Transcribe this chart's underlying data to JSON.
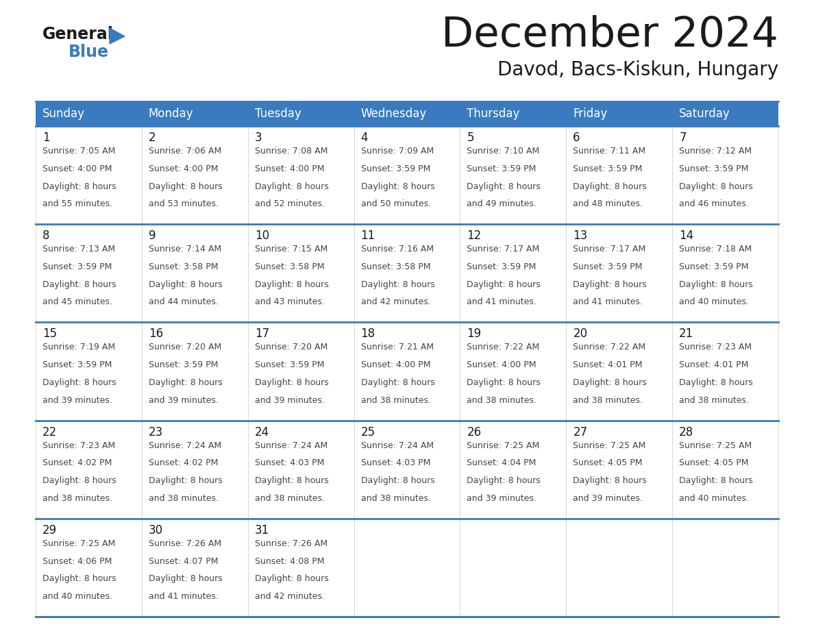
{
  "title": "December 2024",
  "subtitle": "Davod, Bacs-Kiskun, Hungary",
  "days_of_week": [
    "Sunday",
    "Monday",
    "Tuesday",
    "Wednesday",
    "Thursday",
    "Friday",
    "Saturday"
  ],
  "header_bg": "#3a7bbf",
  "header_text": "#ffffff",
  "cell_bg": "#ffffff",
  "border_color": "#3a7bbf",
  "title_color": "#1a1a1a",
  "subtitle_color": "#1a1a1a",
  "day_num_color": "#1a1a1a",
  "cell_text_color": "#444444",
  "logo_black": "#1a1a1a",
  "logo_blue": "#3a7bbf",
  "calendar_data": [
    [
      {
        "day": 1,
        "sunrise": "7:05 AM",
        "sunset": "4:00 PM",
        "daylight": "8 hours and 55 minutes"
      },
      {
        "day": 2,
        "sunrise": "7:06 AM",
        "sunset": "4:00 PM",
        "daylight": "8 hours and 53 minutes"
      },
      {
        "day": 3,
        "sunrise": "7:08 AM",
        "sunset": "4:00 PM",
        "daylight": "8 hours and 52 minutes"
      },
      {
        "day": 4,
        "sunrise": "7:09 AM",
        "sunset": "3:59 PM",
        "daylight": "8 hours and 50 minutes"
      },
      {
        "day": 5,
        "sunrise": "7:10 AM",
        "sunset": "3:59 PM",
        "daylight": "8 hours and 49 minutes"
      },
      {
        "day": 6,
        "sunrise": "7:11 AM",
        "sunset": "3:59 PM",
        "daylight": "8 hours and 48 minutes"
      },
      {
        "day": 7,
        "sunrise": "7:12 AM",
        "sunset": "3:59 PM",
        "daylight": "8 hours and 46 minutes"
      }
    ],
    [
      {
        "day": 8,
        "sunrise": "7:13 AM",
        "sunset": "3:59 PM",
        "daylight": "8 hours and 45 minutes"
      },
      {
        "day": 9,
        "sunrise": "7:14 AM",
        "sunset": "3:58 PM",
        "daylight": "8 hours and 44 minutes"
      },
      {
        "day": 10,
        "sunrise": "7:15 AM",
        "sunset": "3:58 PM",
        "daylight": "8 hours and 43 minutes"
      },
      {
        "day": 11,
        "sunrise": "7:16 AM",
        "sunset": "3:58 PM",
        "daylight": "8 hours and 42 minutes"
      },
      {
        "day": 12,
        "sunrise": "7:17 AM",
        "sunset": "3:59 PM",
        "daylight": "8 hours and 41 minutes"
      },
      {
        "day": 13,
        "sunrise": "7:17 AM",
        "sunset": "3:59 PM",
        "daylight": "8 hours and 41 minutes"
      },
      {
        "day": 14,
        "sunrise": "7:18 AM",
        "sunset": "3:59 PM",
        "daylight": "8 hours and 40 minutes"
      }
    ],
    [
      {
        "day": 15,
        "sunrise": "7:19 AM",
        "sunset": "3:59 PM",
        "daylight": "8 hours and 39 minutes"
      },
      {
        "day": 16,
        "sunrise": "7:20 AM",
        "sunset": "3:59 PM",
        "daylight": "8 hours and 39 minutes"
      },
      {
        "day": 17,
        "sunrise": "7:20 AM",
        "sunset": "3:59 PM",
        "daylight": "8 hours and 39 minutes"
      },
      {
        "day": 18,
        "sunrise": "7:21 AM",
        "sunset": "4:00 PM",
        "daylight": "8 hours and 38 minutes"
      },
      {
        "day": 19,
        "sunrise": "7:22 AM",
        "sunset": "4:00 PM",
        "daylight": "8 hours and 38 minutes"
      },
      {
        "day": 20,
        "sunrise": "7:22 AM",
        "sunset": "4:01 PM",
        "daylight": "8 hours and 38 minutes"
      },
      {
        "day": 21,
        "sunrise": "7:23 AM",
        "sunset": "4:01 PM",
        "daylight": "8 hours and 38 minutes"
      }
    ],
    [
      {
        "day": 22,
        "sunrise": "7:23 AM",
        "sunset": "4:02 PM",
        "daylight": "8 hours and 38 minutes"
      },
      {
        "day": 23,
        "sunrise": "7:24 AM",
        "sunset": "4:02 PM",
        "daylight": "8 hours and 38 minutes"
      },
      {
        "day": 24,
        "sunrise": "7:24 AM",
        "sunset": "4:03 PM",
        "daylight": "8 hours and 38 minutes"
      },
      {
        "day": 25,
        "sunrise": "7:24 AM",
        "sunset": "4:03 PM",
        "daylight": "8 hours and 38 minutes"
      },
      {
        "day": 26,
        "sunrise": "7:25 AM",
        "sunset": "4:04 PM",
        "daylight": "8 hours and 39 minutes"
      },
      {
        "day": 27,
        "sunrise": "7:25 AM",
        "sunset": "4:05 PM",
        "daylight": "8 hours and 39 minutes"
      },
      {
        "day": 28,
        "sunrise": "7:25 AM",
        "sunset": "4:05 PM",
        "daylight": "8 hours and 40 minutes"
      }
    ],
    [
      {
        "day": 29,
        "sunrise": "7:25 AM",
        "sunset": "4:06 PM",
        "daylight": "8 hours and 40 minutes"
      },
      {
        "day": 30,
        "sunrise": "7:26 AM",
        "sunset": "4:07 PM",
        "daylight": "8 hours and 41 minutes"
      },
      {
        "day": 31,
        "sunrise": "7:26 AM",
        "sunset": "4:08 PM",
        "daylight": "8 hours and 42 minutes"
      },
      null,
      null,
      null,
      null
    ]
  ]
}
